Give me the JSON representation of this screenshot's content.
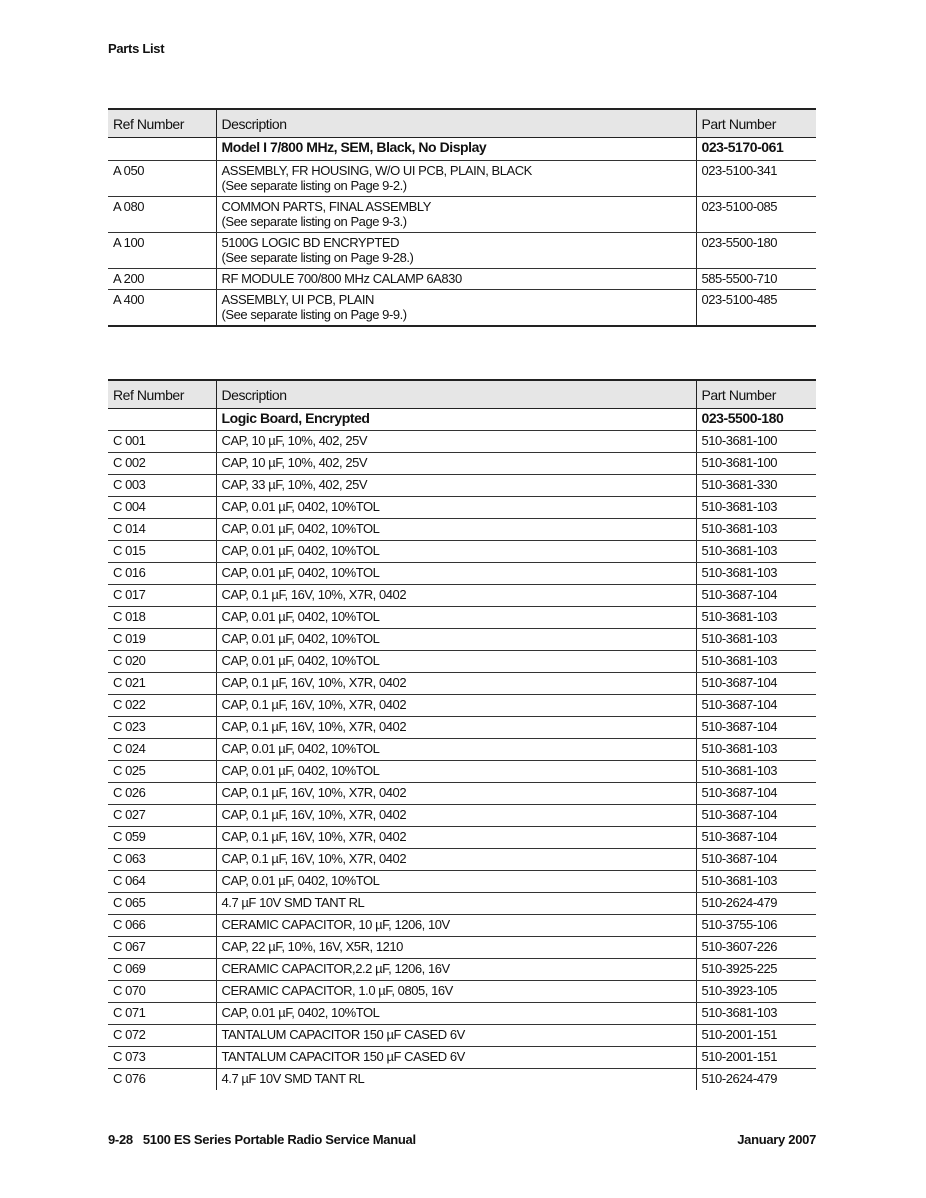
{
  "header": {
    "title": "Parts List"
  },
  "columns": [
    "Ref Number",
    "Description",
    "Part Number"
  ],
  "table1": {
    "title_row": {
      "description": "Model I 7/800 MHz, SEM, Black, No Display",
      "part": "023-5170-061"
    },
    "rows": [
      {
        "ref": "A 050",
        "desc": "ASSEMBLY, FR HOUSING, W/O UI PCB, PLAIN, BLACK",
        "note": "(See separate listing on Page 9-2.)",
        "part": "023-5100-341"
      },
      {
        "ref": "A 080",
        "desc": "COMMON PARTS, FINAL ASSEMBLY",
        "note": "(See separate listing on Page 9-3.)",
        "part": "023-5100-085"
      },
      {
        "ref": "A 100",
        "desc": "5100G LOGIC BD ENCRYPTED",
        "note": "(See separate listing on Page 9-28.)",
        "part": "023-5500-180"
      },
      {
        "ref": "A 200",
        "desc": "RF MODULE 700/800 MHz CALAMP 6A830",
        "part": "585-5500-710"
      },
      {
        "ref": "A 400",
        "desc": "ASSEMBLY, UI PCB, PLAIN",
        "note": "(See separate listing on Page 9-9.)",
        "part": "023-5100-485"
      }
    ]
  },
  "table2": {
    "title_row": {
      "description": "Logic Board, Encrypted",
      "part": "023-5500-180"
    },
    "rows": [
      {
        "ref": "C 001",
        "desc": "CAP, 10  µF, 10%, 402, 25V",
        "part": "510-3681-100"
      },
      {
        "ref": "C 002",
        "desc": "CAP, 10  µF, 10%, 402, 25V",
        "part": "510-3681-100"
      },
      {
        "ref": "C 003",
        "desc": "CAP, 33  µF, 10%, 402, 25V",
        "part": "510-3681-330"
      },
      {
        "ref": "C 004",
        "desc": "CAP, 0.01 µF, 0402, 10%TOL",
        "part": "510-3681-103"
      },
      {
        "ref": "C 014",
        "desc": "CAP, 0.01 µF, 0402, 10%TOL",
        "part": "510-3681-103"
      },
      {
        "ref": "C 015",
        "desc": "CAP, 0.01 µF, 0402, 10%TOL",
        "part": "510-3681-103"
      },
      {
        "ref": "C 016",
        "desc": "CAP, 0.01 µF, 0402, 10%TOL",
        "part": "510-3681-103"
      },
      {
        "ref": "C 017",
        "desc": "CAP, 0.1 µF, 16V, 10%, X7R, 0402",
        "part": "510-3687-104"
      },
      {
        "ref": "C 018",
        "desc": "CAP, 0.01 µF, 0402, 10%TOL",
        "part": "510-3681-103"
      },
      {
        "ref": "C 019",
        "desc": "CAP, 0.01 µF, 0402, 10%TOL",
        "part": "510-3681-103"
      },
      {
        "ref": "C 020",
        "desc": "CAP, 0.01 µF, 0402, 10%TOL",
        "part": "510-3681-103"
      },
      {
        "ref": "C 021",
        "desc": "CAP, 0.1 µF, 16V, 10%, X7R, 0402",
        "part": "510-3687-104"
      },
      {
        "ref": "C 022",
        "desc": "CAP, 0.1 µF, 16V, 10%, X7R, 0402",
        "part": "510-3687-104"
      },
      {
        "ref": "C 023",
        "desc": "CAP, 0.1 µF, 16V, 10%, X7R, 0402",
        "part": "510-3687-104"
      },
      {
        "ref": "C 024",
        "desc": "CAP, 0.01 µF, 0402, 10%TOL",
        "part": "510-3681-103"
      },
      {
        "ref": "C 025",
        "desc": "CAP, 0.01 µF, 0402, 10%TOL",
        "part": "510-3681-103"
      },
      {
        "ref": "C 026",
        "desc": "CAP, 0.1 µF, 16V, 10%, X7R, 0402",
        "part": "510-3687-104"
      },
      {
        "ref": "C 027",
        "desc": "CAP, 0.1 µF, 16V, 10%, X7R, 0402",
        "part": "510-3687-104"
      },
      {
        "ref": "C 059",
        "desc": "CAP, 0.1 µF, 16V, 10%, X7R, 0402",
        "part": "510-3687-104"
      },
      {
        "ref": "C 063",
        "desc": "CAP, 0.1 µF, 16V, 10%, X7R, 0402",
        "part": "510-3687-104"
      },
      {
        "ref": "C 064",
        "desc": "CAP, 0.01 µF, 0402, 10%TOL",
        "part": "510-3681-103"
      },
      {
        "ref": "C 065",
        "desc": "4.7 µF 10V SMD TANT RL",
        "part": "510-2624-479"
      },
      {
        "ref": "C 066",
        "desc": "CERAMIC CAPACITOR, 10 µF, 1206, 10V",
        "part": "510-3755-106"
      },
      {
        "ref": "C 067",
        "desc": "CAP, 22 µF, 10%, 16V, X5R, 1210",
        "part": "510-3607-226"
      },
      {
        "ref": "C 069",
        "desc": "CERAMIC CAPACITOR,2.2 µF, 1206, 16V",
        "part": "510-3925-225"
      },
      {
        "ref": "C 070",
        "desc": "CERAMIC CAPACITOR, 1.0 µF, 0805, 16V",
        "part": "510-3923-105"
      },
      {
        "ref": "C 071",
        "desc": "CAP, 0.01 µF, 0402, 10%TOL",
        "part": "510-3681-103"
      },
      {
        "ref": "C 072",
        "desc": "TANTALUM CAPACITOR 150 µF CASED 6V",
        "part": "510-2001-151"
      },
      {
        "ref": "C 073",
        "desc": "TANTALUM CAPACITOR 150 µF CASED 6V",
        "part": "510-2001-151"
      },
      {
        "ref": "C 076",
        "desc": "4.7 µF 10V SMD TANT RL",
        "part": "510-2624-479"
      }
    ]
  },
  "footer": {
    "page": "9-28",
    "manual": "5100 ES Series Portable Radio Service Manual",
    "date": "January 2007"
  }
}
